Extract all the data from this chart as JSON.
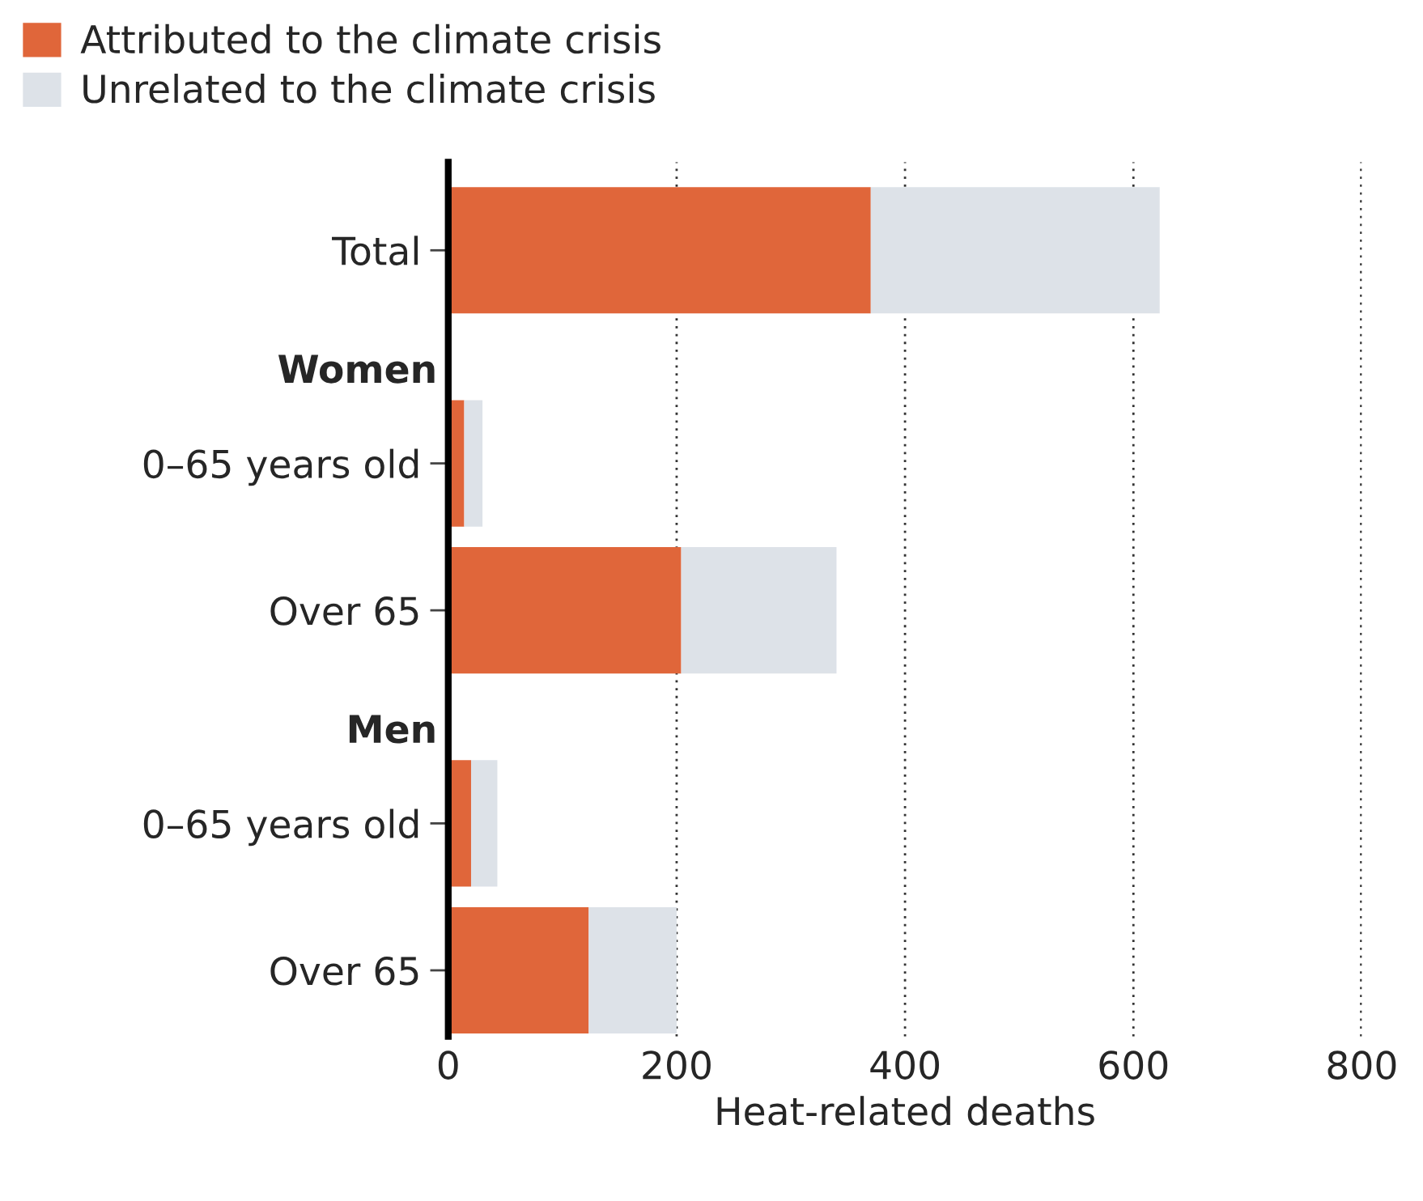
{
  "chart_data": {
    "type": "bar",
    "orientation": "horizontal",
    "stacked": true,
    "xlabel": "Heat-related deaths",
    "categories": [
      "Total",
      "0–65 years old",
      "Over 65",
      "0–65 years old",
      "Over 65"
    ],
    "series": [
      {
        "name": "Attributed to the climate crisis",
        "color": "#e0663a",
        "values": [
          370,
          14,
          204,
          20,
          123
        ]
      },
      {
        "name": "Unrelated to the climate crisis",
        "color": "#dde2e8",
        "values": [
          253,
          16,
          136,
          23,
          77
        ]
      }
    ],
    "annotations": [
      "Women",
      "Men"
    ],
    "xlim": [
      0,
      800
    ],
    "xticks": [
      0,
      200,
      400,
      600,
      800
    ],
    "grid": "x",
    "legend": "top left"
  }
}
